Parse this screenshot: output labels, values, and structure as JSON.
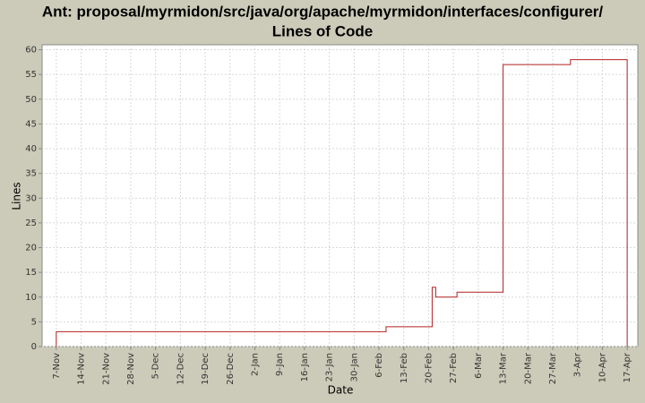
{
  "chart_data": {
    "type": "line",
    "title": "Ant: proposal/myrmidon/src/java/org/apache/myrmidon/interfaces/configurer/",
    "subtitle": "Lines of Code",
    "x_label": "Date",
    "y_label": "Lines",
    "series": [
      {
        "name": "Lines",
        "color": "#b22222",
        "x": [
          "7-Nov",
          "7-Nov",
          "8-Feb",
          "21-Feb",
          "21-Feb",
          "22-Feb",
          "28-Feb",
          "13-Mar",
          "1-Apr",
          "17-Apr"
        ],
        "values": [
          0,
          3,
          4,
          5,
          12,
          10,
          11,
          57,
          58,
          0
        ]
      }
    ],
    "xlim": [
      "3-Nov",
      "20-Apr"
    ],
    "xticks": [
      "7-Nov",
      "14-Nov",
      "21-Nov",
      "28-Nov",
      "5-Dec",
      "12-Dec",
      "19-Dec",
      "26-Dec",
      "2-Jan",
      "9-Jan",
      "16-Jan",
      "23-Jan",
      "30-Jan",
      "6-Feb",
      "13-Feb",
      "20-Feb",
      "27-Feb",
      "6-Mar",
      "13-Mar",
      "20-Mar",
      "27-Mar",
      "3-Apr",
      "10-Apr",
      "17-Apr"
    ],
    "ylim": [
      0,
      61
    ],
    "yticks": [
      0,
      5,
      10,
      15,
      20,
      25,
      30,
      35,
      40,
      45,
      50,
      55,
      60
    ],
    "grid": true
  }
}
